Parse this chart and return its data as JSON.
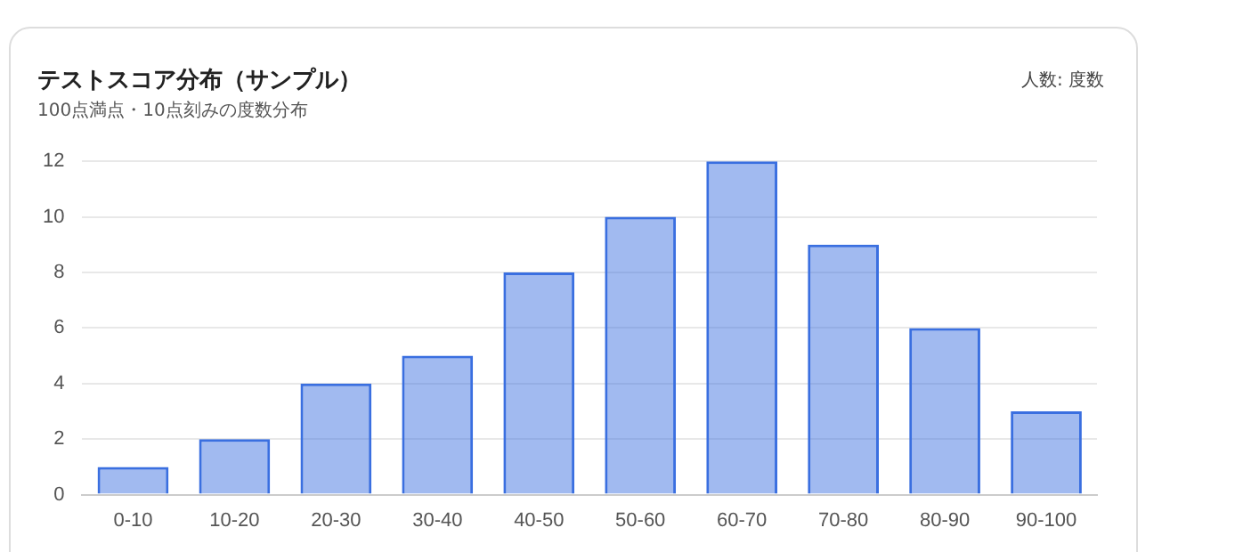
{
  "chart_data": {
    "type": "bar",
    "title": "テストスコア分布（サンプル）",
    "subtitle": "100点満点・10点刻みの度数分布",
    "annotations": [
      "人数: 度数"
    ],
    "categories": [
      "0-10",
      "10-20",
      "20-30",
      "30-40",
      "40-50",
      "50-60",
      "60-70",
      "70-80",
      "80-90",
      "90-100"
    ],
    "values": [
      1,
      2,
      4,
      5,
      8,
      10,
      12,
      9,
      6,
      3
    ],
    "color": "#3a6fe0",
    "ylim": [
      0,
      12
    ],
    "yticks": [
      0,
      2,
      4,
      6,
      8,
      10,
      12
    ],
    "grid": "y"
  }
}
